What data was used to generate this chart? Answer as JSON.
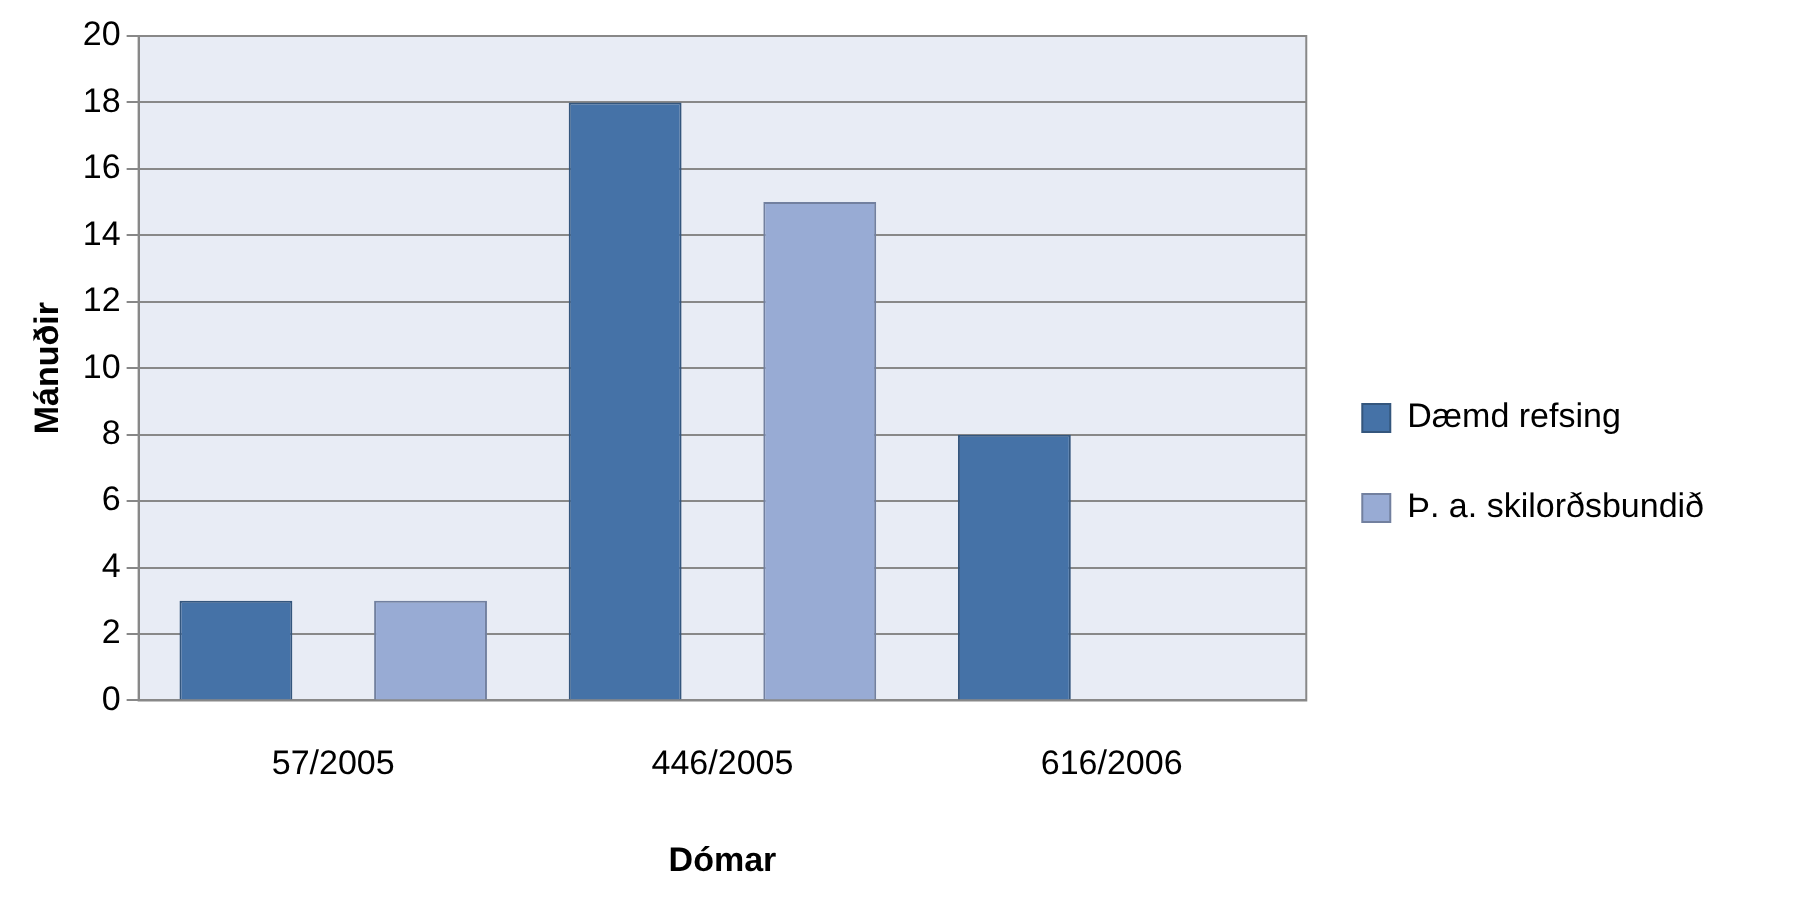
{
  "chart_data": {
    "type": "bar",
    "xlabel": "Dómar",
    "ylabel": "Mánuðir",
    "categories": [
      "57/2005",
      "446/2005",
      "616/2006"
    ],
    "series": [
      {
        "name": "Dæmd refsing",
        "color": "#4572a7",
        "values": [
          3,
          18,
          8
        ]
      },
      {
        "name": "Þ. a. skilorðsbundið",
        "color": "#98abd4",
        "values": [
          3,
          15,
          null
        ]
      }
    ],
    "ylim": [
      0,
      20
    ],
    "yticks": [
      0,
      2,
      4,
      6,
      8,
      10,
      12,
      14,
      16,
      18,
      20
    ],
    "grid": "y",
    "legend": "right"
  }
}
